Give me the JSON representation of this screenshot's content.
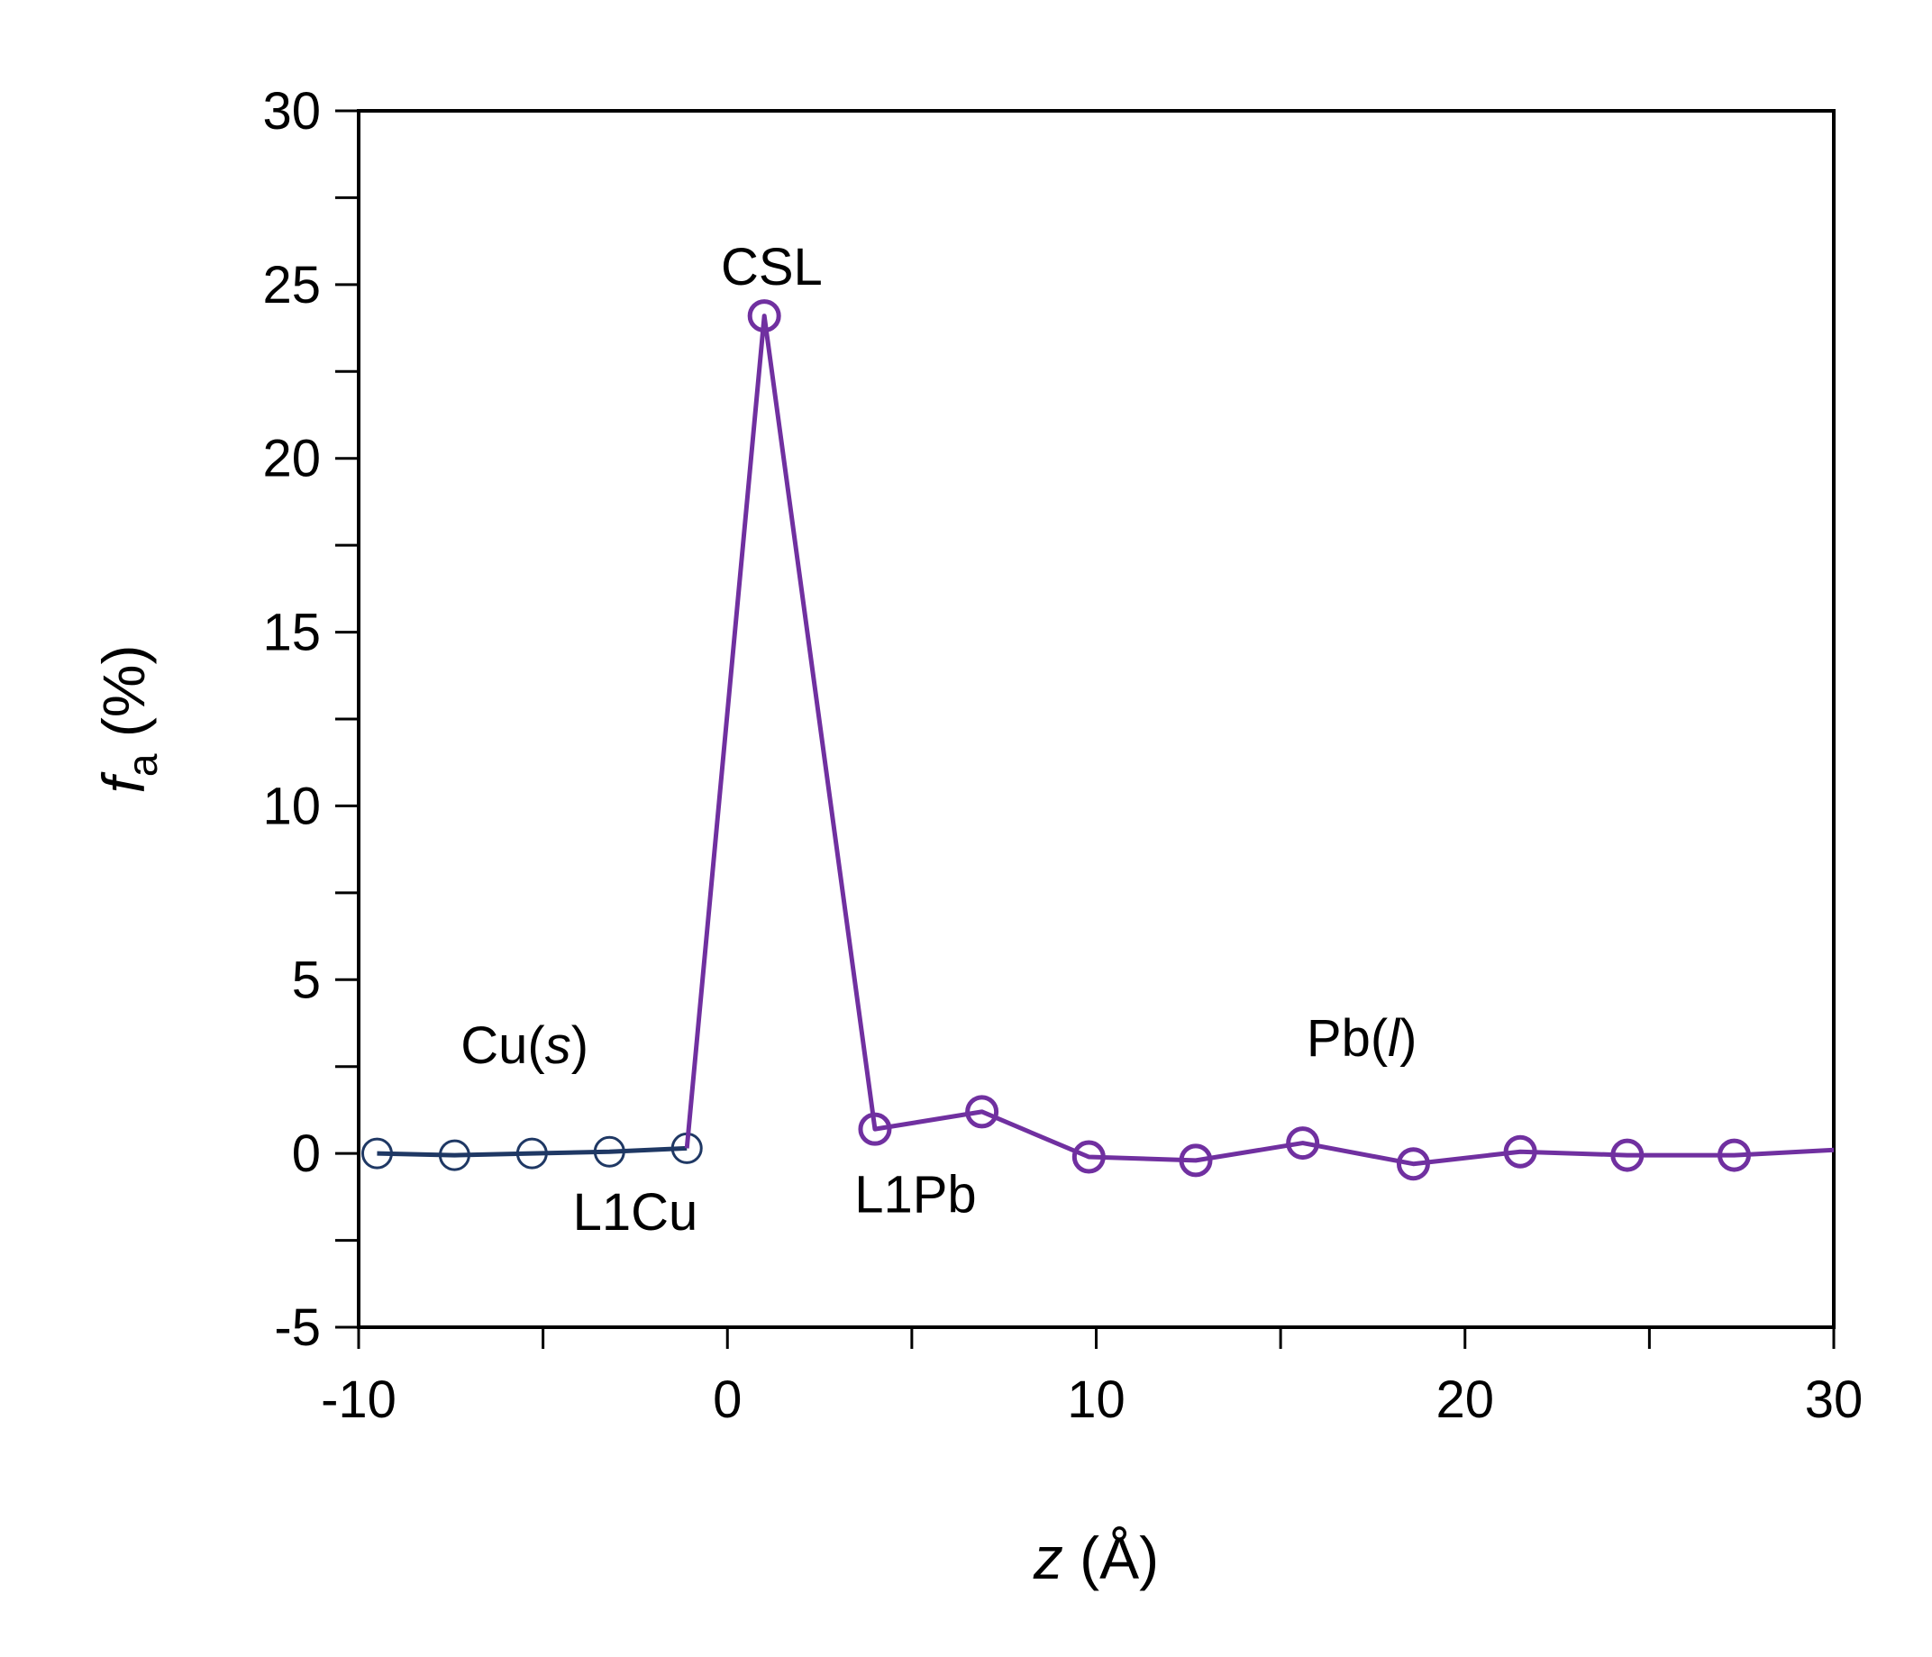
{
  "chart_data": {
    "type": "line",
    "title": "",
    "xlabel": {
      "var": "z",
      "rest": " (Å)"
    },
    "ylabel": {
      "var": "f",
      "sub": "a",
      "rest": " (%)"
    },
    "xlim": [
      -10,
      30
    ],
    "ylim": [
      -5,
      30
    ],
    "xticks": [
      -10,
      0,
      10,
      20,
      30
    ],
    "yticks": [
      -5,
      0,
      5,
      10,
      15,
      20,
      25,
      30
    ],
    "xtick_labels": [
      "-10",
      "0",
      "10",
      "20",
      "30"
    ],
    "ytick_labels": [
      "-5",
      "0",
      "5",
      "10",
      "15",
      "20",
      "25",
      "30"
    ],
    "grid": false,
    "series": [
      {
        "color": "#1f3864",
        "marker": "open-circle",
        "x": [
          -9.5,
          -7.4,
          -5.3,
          -3.2,
          -1.1
        ],
        "y": [
          0.0,
          -0.05,
          0.0,
          0.05,
          0.15
        ]
      },
      {
        "color": "#7030a0",
        "marker": "open-circle",
        "x": [
          -1.1,
          1.0,
          4.0,
          6.9,
          9.8,
          12.7,
          15.6,
          18.6,
          21.5,
          24.4,
          27.3,
          30.0
        ],
        "y": [
          0.15,
          24.1,
          0.7,
          1.2,
          -0.1,
          -0.2,
          0.3,
          -0.3,
          0.05,
          -0.05,
          -0.05,
          0.1
        ],
        "markers_on": [
          1,
          2,
          3,
          4,
          5,
          6,
          7,
          8,
          9,
          10
        ]
      }
    ],
    "annotations": [
      {
        "id": "cu",
        "parts": [
          [
            "Cu(",
            false
          ],
          [
            "s",
            true
          ],
          [
            ")",
            false
          ]
        ],
        "x": -5.5,
        "y": 2.6
      },
      {
        "id": "l1cu",
        "parts": [
          [
            "L1Cu",
            false
          ]
        ],
        "x": -2.5,
        "y": -2.2
      },
      {
        "id": "csl",
        "parts": [
          [
            "CSL",
            false
          ]
        ],
        "x": 1.2,
        "y": 25.0
      },
      {
        "id": "l1pb",
        "parts": [
          [
            "L1Pb",
            false
          ]
        ],
        "x": 5.1,
        "y": -1.7
      },
      {
        "id": "pb",
        "parts": [
          [
            "Pb(",
            false
          ],
          [
            "l",
            true
          ],
          [
            ")",
            false
          ]
        ],
        "x": 17.2,
        "y": 2.8
      }
    ]
  }
}
